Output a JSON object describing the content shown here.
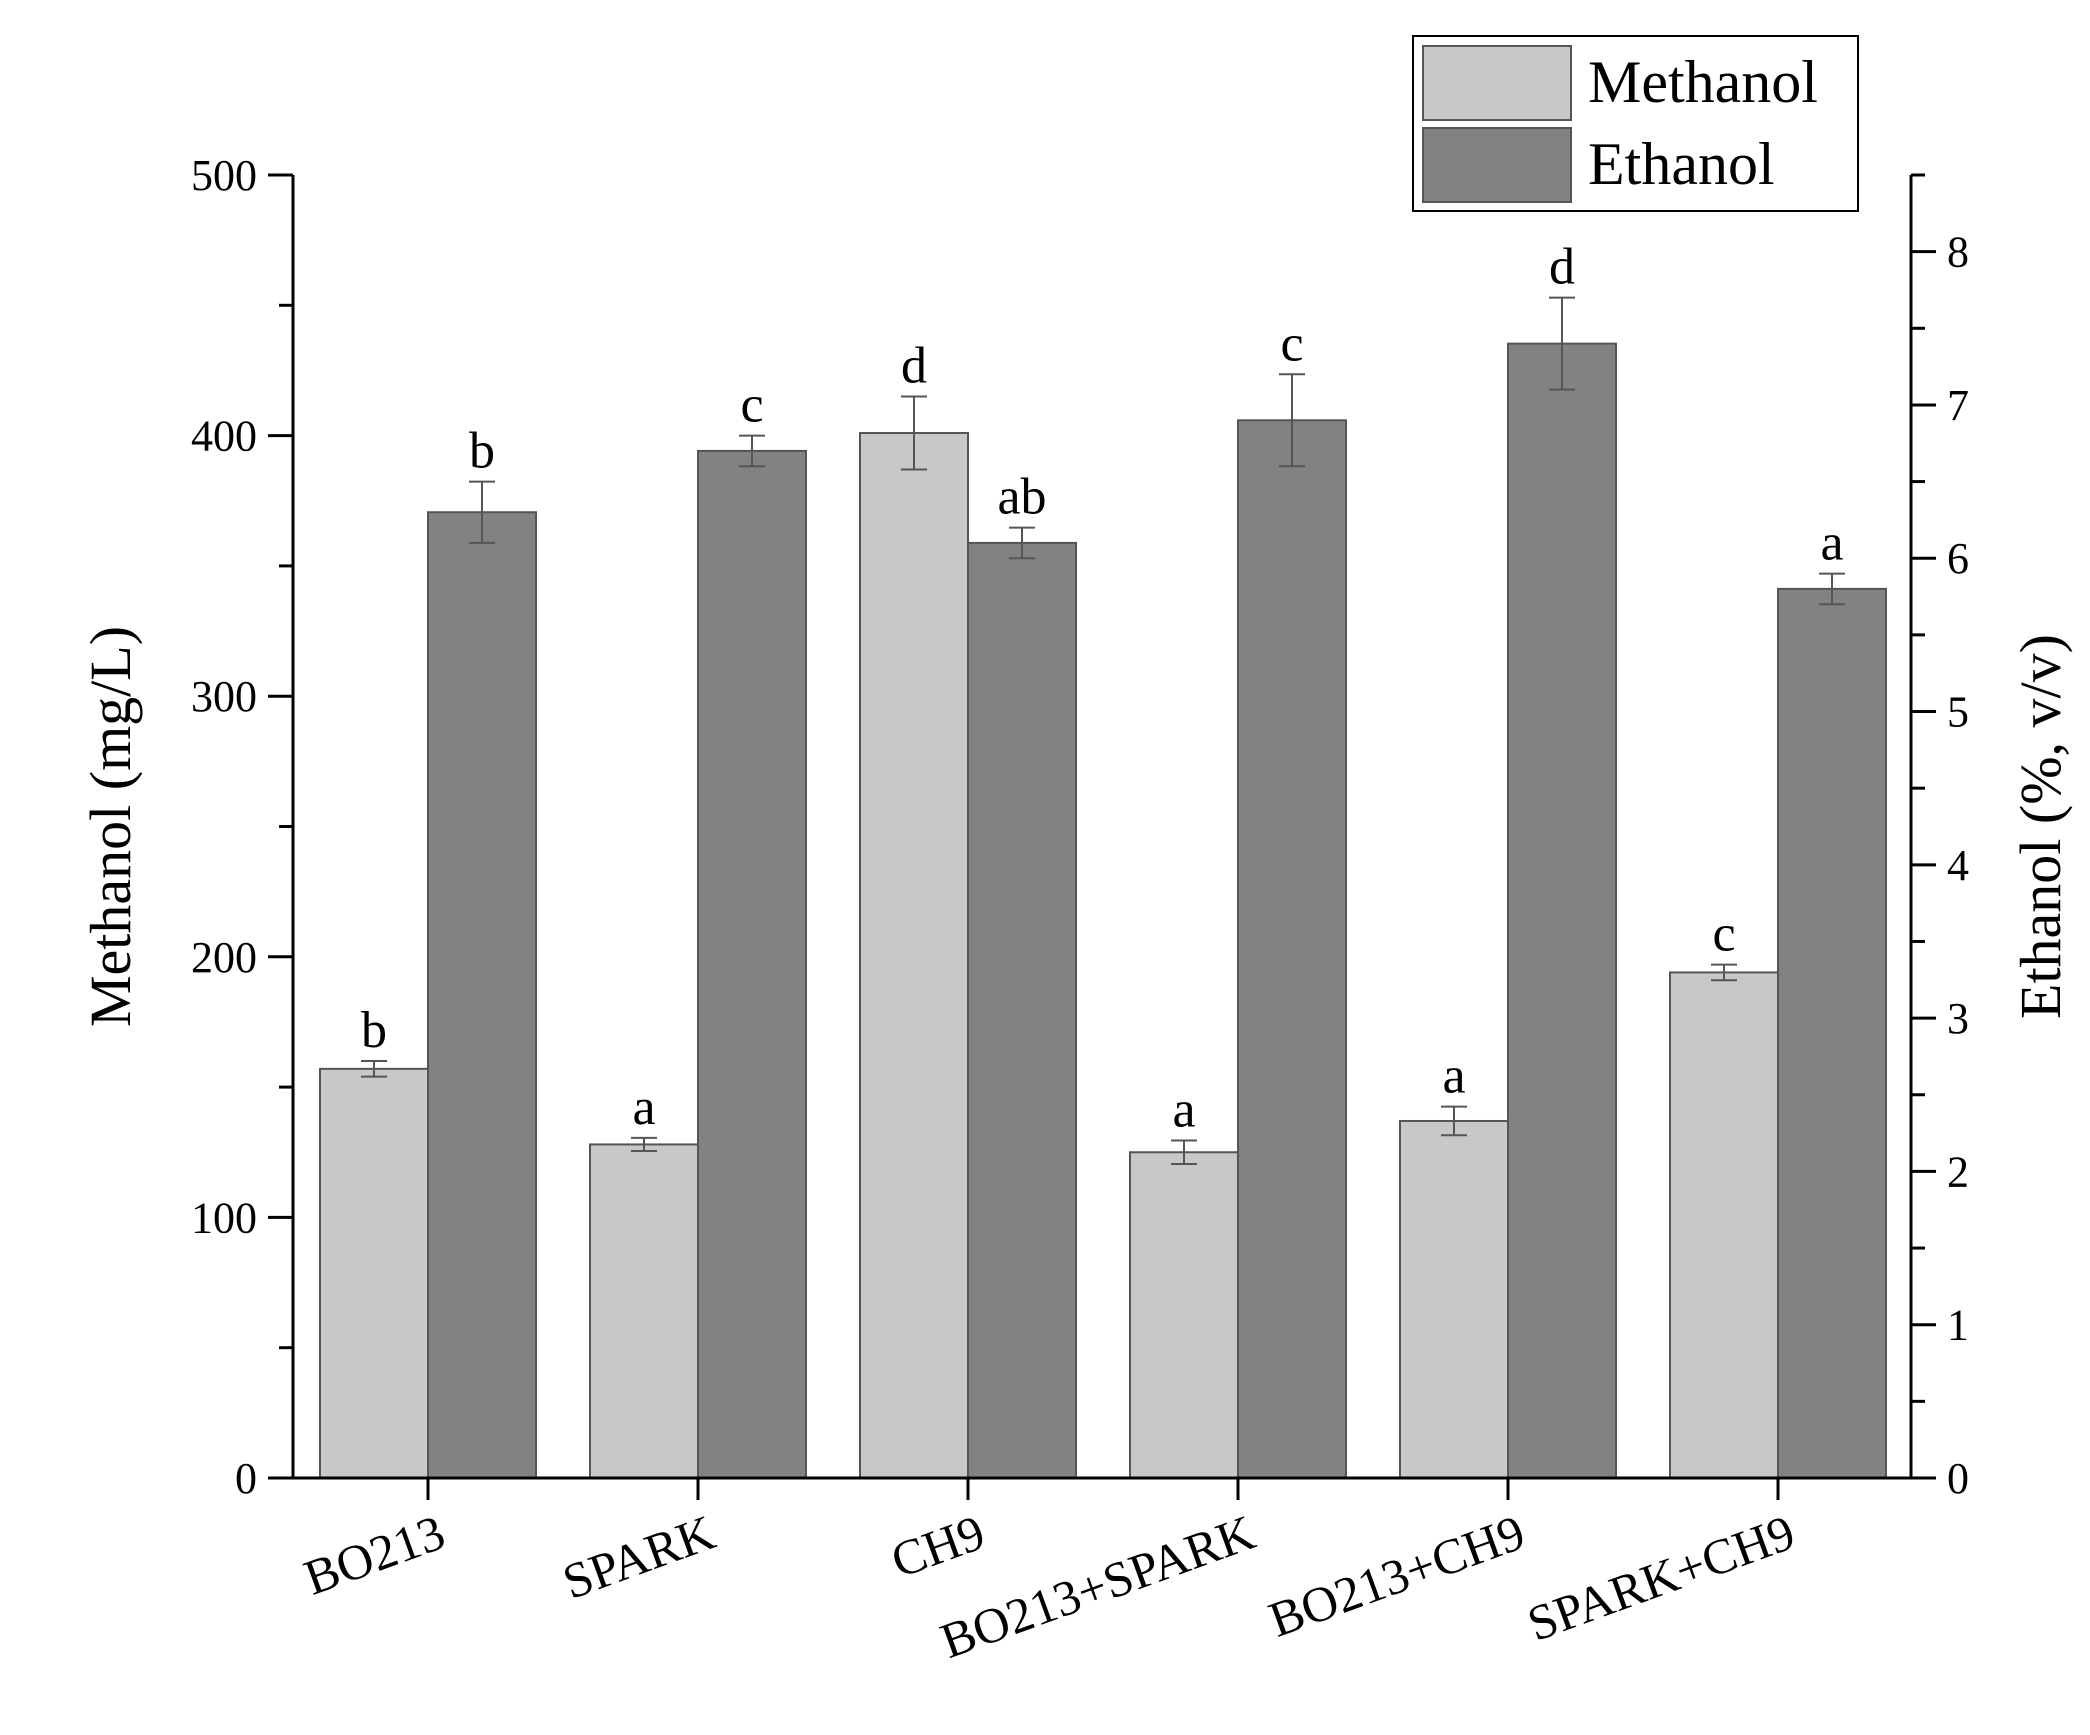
{
  "chart_data": {
    "type": "bar",
    "categories": [
      "BO213",
      "SPARK",
      "CH9",
      "BO213+SPARK",
      "BO213+CH9",
      "SPARK+CH9"
    ],
    "series": [
      {
        "name": "Methanol",
        "axis": "left",
        "color": "#c8c8c8",
        "values": [
          157,
          128,
          401,
          125,
          137,
          194
        ],
        "errors": [
          3,
          2.5,
          14,
          4.5,
          5.5,
          3
        ],
        "significance": [
          "b",
          "a",
          "d",
          "a",
          "a",
          "c"
        ]
      },
      {
        "name": "Ethanol",
        "axis": "right",
        "color": "#828282",
        "values": [
          6.3,
          6.7,
          6.1,
          6.9,
          7.4,
          5.8
        ],
        "errors": [
          0.2,
          0.1,
          0.1,
          0.3,
          0.3,
          0.1
        ],
        "significance": [
          "b",
          "c",
          "ab",
          "c",
          "d",
          "a"
        ]
      }
    ],
    "y_left": {
      "label": "Methanol (mg/L)",
      "ylim": [
        0,
        500
      ],
      "ticks": [
        0,
        100,
        200,
        300,
        400,
        500
      ]
    },
    "y_right": {
      "label": "Ethanol (%, v/v)",
      "ylim": [
        0,
        8.5
      ],
      "ticks": [
        0,
        1,
        2,
        3,
        4,
        5,
        6,
        7,
        8
      ]
    },
    "xlabel": "",
    "title": "",
    "legend": {
      "placement": "top-right",
      "entries": [
        "Methanol",
        "Ethanol"
      ]
    },
    "grid": false
  }
}
